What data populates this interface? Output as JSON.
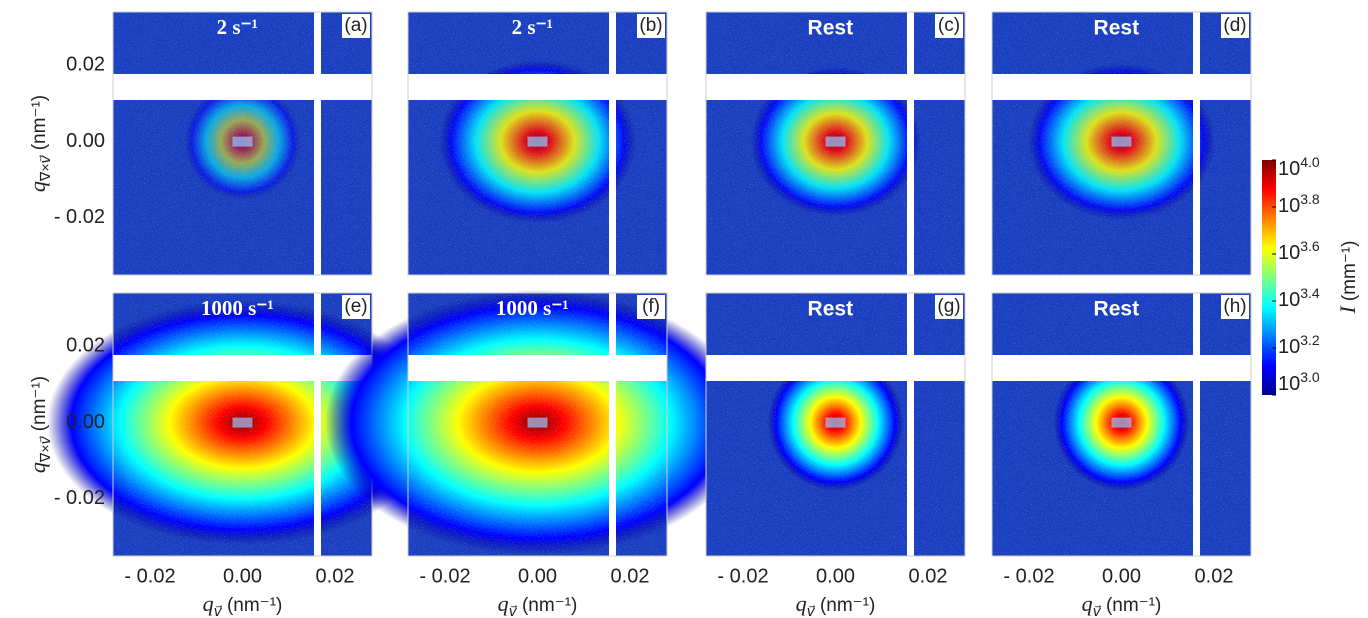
{
  "chart_data": {
    "type": "heatmap",
    "panels": [
      {
        "title": "2 s⁻¹",
        "label": "(a)"
      },
      {
        "title": "2 s⁻¹",
        "label": "(b)"
      },
      {
        "title": "Rest",
        "label": "(c)"
      },
      {
        "title": "Rest",
        "label": "(d)"
      },
      {
        "title": "1000 s⁻¹",
        "label": "(e)"
      },
      {
        "title": "1000 s⁻¹",
        "label": "(f)"
      },
      {
        "title": "Rest",
        "label": "(g)"
      },
      {
        "title": "Rest",
        "label": "(h)"
      }
    ],
    "xlabel": {
      "symbol": "q",
      "subscript": "v⃗",
      "unit": "(nm⁻¹)"
    },
    "ylabel": {
      "symbol": "q",
      "subscript": "∇×v⃗",
      "unit": "(nm⁻¹)"
    },
    "xlim": [
      -0.028,
      0.028
    ],
    "ylim": [
      -0.035,
      0.034
    ],
    "xticks": [
      {
        "value": -0.02,
        "label": "- 0.02"
      },
      {
        "value": 0,
        "label": "0.00"
      },
      0.02
    ],
    "yticks": [
      0.02,
      {
        "value": 0,
        "label": "0.00"
      },
      {
        "value": -0.02,
        "label": "- 0.02"
      }
    ],
    "colorbar": {
      "label": {
        "symbol": "I",
        "unit": "(mm⁻¹)"
      },
      "lim": [
        3.0,
        4.0
      ],
      "ticks": [
        {
          "value": 4.0,
          "label": "10^4.0"
        },
        {
          "value": 3.8,
          "label": "10^3.8"
        },
        {
          "value": 3.6,
          "label": "10^3.6"
        },
        {
          "value": 3.4,
          "label": "10^3.4"
        },
        {
          "value": 3.2,
          "label": "10^3.2"
        },
        {
          "value": 3.0,
          "label": "10^3.0"
        }
      ],
      "colors": [
        "#00008f",
        "#0000ff",
        "#0080ff",
        "#00ffff",
        "#80ff80",
        "#ffff00",
        "#ff8000",
        "#ff0000",
        "#800000"
      ]
    }
  }
}
